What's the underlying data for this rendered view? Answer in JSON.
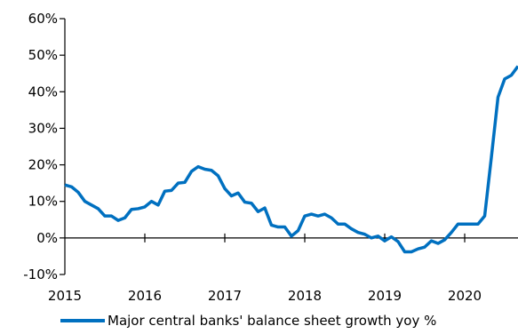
{
  "chart_data": {
    "type": "line",
    "title": "",
    "xlabel": "",
    "ylabel": "",
    "ylim": [
      -10,
      60
    ],
    "y_ticks": [
      "-10%",
      "0%",
      "10%",
      "20%",
      "30%",
      "40%",
      "50%",
      "60%"
    ],
    "x_ticks": [
      "2015",
      "2016",
      "2017",
      "2018",
      "2019",
      "2020"
    ],
    "x_ticks_years": [
      2015,
      2016,
      2017,
      2018,
      2019,
      2020
    ],
    "xlim": [
      "2015-01",
      "2020-09"
    ],
    "grid": false,
    "legend_position": "bottom",
    "series": [
      {
        "name": "Major central banks' balance sheet growth yoy %",
        "color": "#0070C0",
        "x": [
          "2015-01",
          "2015-02",
          "2015-03",
          "2015-04",
          "2015-05",
          "2015-06",
          "2015-07",
          "2015-08",
          "2015-09",
          "2015-10",
          "2015-11",
          "2015-12",
          "2016-01",
          "2016-02",
          "2016-03",
          "2016-04",
          "2016-05",
          "2016-06",
          "2016-07",
          "2016-08",
          "2016-09",
          "2016-10",
          "2016-11",
          "2016-12",
          "2017-01",
          "2017-02",
          "2017-03",
          "2017-04",
          "2017-05",
          "2017-06",
          "2017-07",
          "2017-08",
          "2017-09",
          "2017-10",
          "2017-11",
          "2017-12",
          "2018-01",
          "2018-02",
          "2018-03",
          "2018-04",
          "2018-05",
          "2018-06",
          "2018-07",
          "2018-08",
          "2018-09",
          "2018-10",
          "2018-11",
          "2018-12",
          "2019-01",
          "2019-02",
          "2019-03",
          "2019-04",
          "2019-05",
          "2019-06",
          "2019-07",
          "2019-08",
          "2019-09",
          "2019-10",
          "2019-11",
          "2019-12",
          "2020-01",
          "2020-02",
          "2020-03",
          "2020-04",
          "2020-05",
          "2020-06",
          "2020-07",
          "2020-08",
          "2020-09"
        ],
        "values": [
          14.5,
          14,
          12.5,
          10,
          9,
          8,
          6,
          6,
          4.8,
          5.5,
          7.8,
          8,
          8.5,
          10,
          9,
          12.8,
          13,
          15,
          15.2,
          18.2,
          19.5,
          18.8,
          18.5,
          17,
          13.5,
          11.5,
          12.3,
          9.8,
          9.5,
          7.2,
          8.2,
          3.5,
          3,
          3,
          0.5,
          2,
          6,
          6.5,
          6,
          6.5,
          5.5,
          3.8,
          3.8,
          2.5,
          1.5,
          1,
          0,
          0.5,
          -0.8,
          0.3,
          -1,
          -3.8,
          -3.8,
          -3,
          -2.5,
          -0.8,
          -1.5,
          -0.5,
          1.5,
          3.8,
          3.8,
          3.8,
          3.8,
          6,
          22,
          38.5,
          43.5,
          44.5,
          47
        ]
      }
    ]
  }
}
